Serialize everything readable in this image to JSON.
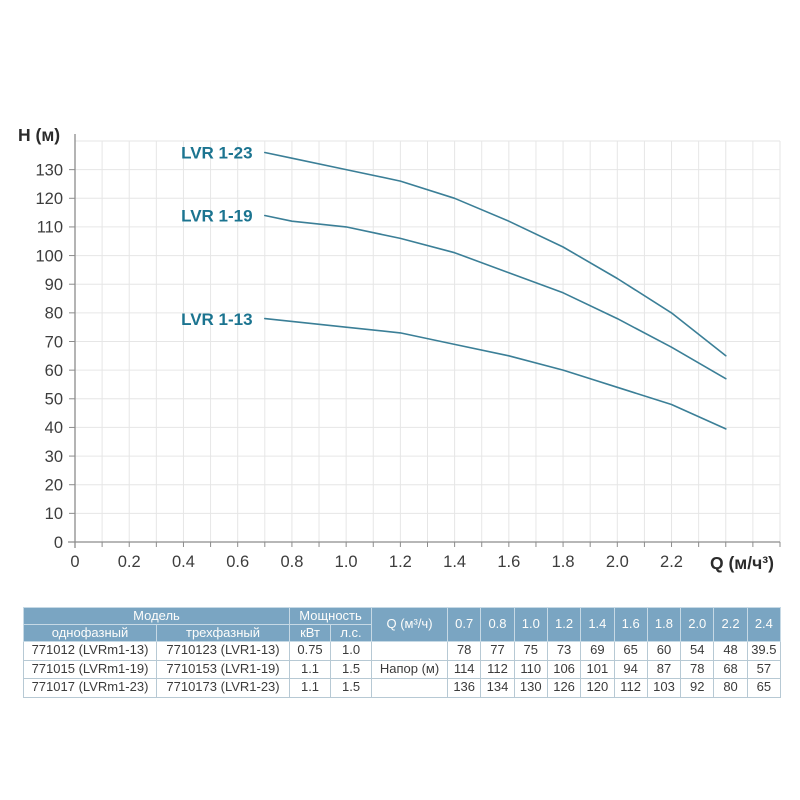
{
  "page": {
    "background": "#ffffff"
  },
  "chart": {
    "y_axis_title": "H (м)",
    "x_axis_title": "Q (м/ч³)",
    "x_tick_labels": [
      "0",
      "0.2",
      "0.4",
      "0.6",
      "0.8",
      "1.0",
      "1.2",
      "1.4",
      "1.6",
      "1.8",
      "2.0",
      "2.2"
    ],
    "y_tick_labels": [
      "0",
      "10",
      "20",
      "30",
      "40",
      "50",
      "60",
      "70",
      "80",
      "90",
      "100",
      "110",
      "120",
      "130"
    ],
    "colors": {
      "curve": "#3b7f97",
      "series_label": "#1b7490",
      "grid": "#e6e6e6",
      "axis": "#8c8c8c",
      "tick_text": "#3d3d3d",
      "axis_title": "#2b2b2b"
    }
  },
  "chart_data": {
    "type": "line",
    "title": "",
    "xlabel": "Q (м/ч³)",
    "ylabel": "H (м)",
    "x": [
      0.7,
      0.8,
      1.0,
      1.2,
      1.4,
      1.6,
      1.8,
      2.0,
      2.2,
      2.4
    ],
    "series": [
      {
        "name": "LVR 1-23",
        "values": [
          136,
          134,
          130,
          126,
          120,
          112,
          103,
          92,
          80,
          65
        ]
      },
      {
        "name": "LVR 1-19",
        "values": [
          114,
          112,
          110,
          106,
          101,
          94,
          87,
          78,
          68,
          57
        ]
      },
      {
        "name": "LVR 1-13",
        "values": [
          78,
          77,
          75,
          73,
          69,
          65,
          60,
          54,
          48,
          39.5
        ]
      }
    ],
    "xlim": [
      0,
      2.6
    ],
    "ylim": [
      0,
      140
    ],
    "x_grid_step": 0.1,
    "y_grid_step": 10,
    "x_tick_label_step": 0.2,
    "y_tick_label_step": 10,
    "grid": true,
    "legend_position": "inline-labels-left-of-curves"
  },
  "table": {
    "group_headers": {
      "model": "Модель",
      "power": "Мощность",
      "flow": "Q (м³/ч)"
    },
    "sub_headers": {
      "single_phase": "однофазный",
      "three_phase": "трехфазный",
      "kw": "кВт",
      "hp": "л.с."
    },
    "flow_values": [
      "0.7",
      "0.8",
      "1.0",
      "1.2",
      "1.4",
      "1.6",
      "1.8",
      "2.0",
      "2.2",
      "2.4"
    ],
    "head_row_label": "Напор (м)",
    "rows": [
      {
        "single_phase": "771012 (LVRm1-13)",
        "three_phase": "7710123 (LVR1-13)",
        "kw": "0.75",
        "hp": "1.0",
        "head": [
          "78",
          "77",
          "75",
          "73",
          "69",
          "65",
          "60",
          "54",
          "48",
          "39.5"
        ]
      },
      {
        "single_phase": "771015 (LVRm1-19)",
        "three_phase": "7710153 (LVR1-19)",
        "kw": "1.1",
        "hp": "1.5",
        "head": [
          "114",
          "112",
          "110",
          "106",
          "101",
          "94",
          "87",
          "78",
          "68",
          "57"
        ]
      },
      {
        "single_phase": "771017 (LVRm1-23)",
        "three_phase": "7710173 (LVR1-23)",
        "kw": "1.1",
        "hp": "1.5",
        "head": [
          "136",
          "134",
          "130",
          "126",
          "120",
          "112",
          "103",
          "92",
          "80",
          "65"
        ]
      }
    ]
  }
}
